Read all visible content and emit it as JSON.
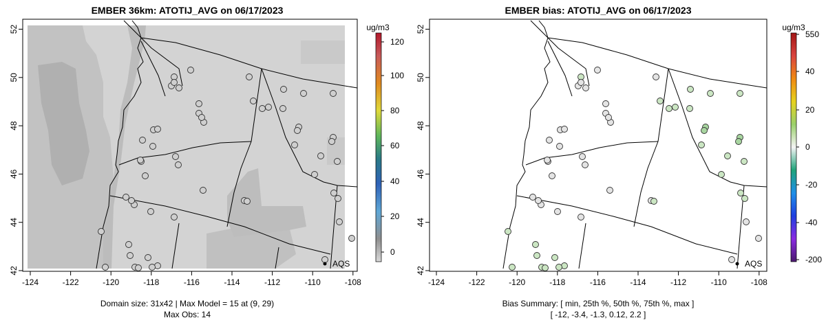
{
  "left": {
    "title": "EMBER 36km: ATOTIJ_AVG on 06/17/2023",
    "unit": "ug/m3",
    "colorbar_ticks": [
      "0",
      "20",
      "40",
      "60",
      "80",
      "100",
      "120"
    ],
    "footer_line1": "Domain size: 31x42 | Max Model = 15 at (9, 29)",
    "footer_line2": "Max Obs: 14",
    "aqs_label": "AQS"
  },
  "right": {
    "title": "EMBER bias: ATOTIJ_AVG on 06/17/2023",
    "unit": "ug/m3",
    "colorbar_ticks": [
      "-200",
      "-40",
      "-20",
      "0",
      "20",
      "40",
      "550"
    ],
    "footer_line1": "Bias Summary: [ min, 25th %, 50th %, 75th %, max ]",
    "footer_line2": "[ -12,   -3.4,   -1.3,   0.12,   2.2 ]",
    "aqs_label": "AQS"
  },
  "axes": {
    "x_ticks": [
      "-124",
      "-122",
      "-120",
      "-118",
      "-116",
      "-114",
      "-112",
      "-110",
      "-108"
    ],
    "y_ticks": [
      "42",
      "44",
      "46",
      "48",
      "50",
      "52"
    ]
  },
  "colors": {
    "model_light": "#d3d3d3",
    "model_dark": "#a9a9a9",
    "bias_positive_light": "#d8ebd1",
    "bias_positive": "#a8d5a0",
    "colorbar_max": "#b2182b"
  },
  "chart_data": [
    {
      "type": "heatmap",
      "title": "EMBER 36km: ATOTIJ_AVG on 06/17/2023",
      "xlim": [
        -124.2,
        -107.8
      ],
      "ylim": [
        42,
        52.3
      ],
      "colorbar_range": [
        -7,
        125
      ],
      "colorbar_unit": "ug/m3",
      "stations_plotted": true
    },
    {
      "type": "scatter",
      "title": "EMBER bias: ATOTIJ_AVG on 06/17/2023",
      "xlim": [
        -124.2,
        -107.8
      ],
      "ylim": [
        42,
        52.3
      ],
      "bias_summary": {
        "min": -12,
        "p25": -3.4,
        "p50": -1.3,
        "p75": 0.12,
        "max": 2.2
      },
      "colorbar_unit": "ug/m3"
    }
  ]
}
